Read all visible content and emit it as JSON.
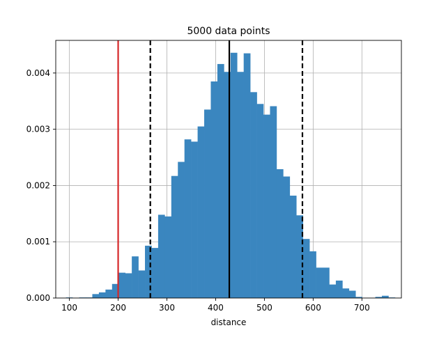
{
  "chart_data": {
    "type": "bar",
    "title": "5000 data points",
    "xlabel": "distance",
    "ylabel": "",
    "xlim": [
      72,
      781
    ],
    "ylim": [
      0,
      0.00458
    ],
    "grid": true,
    "bar_color": "#3a86bf",
    "bin_edges": [
      93,
      106.5,
      120,
      133.5,
      147,
      160.5,
      174,
      187.5,
      201,
      214.5,
      228,
      241.5,
      255,
      268.5,
      282,
      295.5,
      309,
      322.5,
      336,
      349.5,
      363,
      376.5,
      390,
      403.5,
      417,
      430.5,
      444,
      457.5,
      471,
      484.5,
      498,
      511.5,
      525,
      538.5,
      552,
      565.5,
      579,
      592.5,
      606,
      619.5,
      633,
      646.5,
      660,
      673.5,
      687,
      700.5,
      714,
      727.5,
      741,
      754.5,
      768
    ],
    "densities": [
      1e-05,
      0.0,
      1e-05,
      1e-05,
      7e-05,
      0.0001,
      0.00015,
      0.00025,
      0.00045,
      0.00044,
      0.00074,
      0.00049,
      0.00093,
      0.00089,
      0.00148,
      0.00145,
      0.00217,
      0.00242,
      0.00282,
      0.00278,
      0.00305,
      0.00335,
      0.00385,
      0.00416,
      0.00402,
      0.00436,
      0.00402,
      0.00435,
      0.00366,
      0.00345,
      0.00326,
      0.00341,
      0.00229,
      0.00216,
      0.00182,
      0.00147,
      0.00105,
      0.00083,
      0.00054,
      0.00054,
      0.00024,
      0.00031,
      0.00017,
      0.00013,
      2e-05,
      0.0,
      0.0,
      2e-05,
      4e-05,
      1e-05
    ],
    "xticks": [
      100,
      200,
      300,
      400,
      500,
      600,
      700
    ],
    "yticks": [
      0.0,
      0.001,
      0.002,
      0.003,
      0.004
    ],
    "ytick_labels": [
      "0.000",
      "0.001",
      "0.002",
      "0.003",
      "0.004"
    ],
    "reference_lines": [
      {
        "x": 200,
        "color": "#d62728",
        "style": "solid"
      },
      {
        "x": 266,
        "color": "#000000",
        "style": "dashed"
      },
      {
        "x": 428,
        "color": "#000000",
        "style": "solid"
      },
      {
        "x": 578,
        "color": "#000000",
        "style": "dashed"
      }
    ]
  }
}
